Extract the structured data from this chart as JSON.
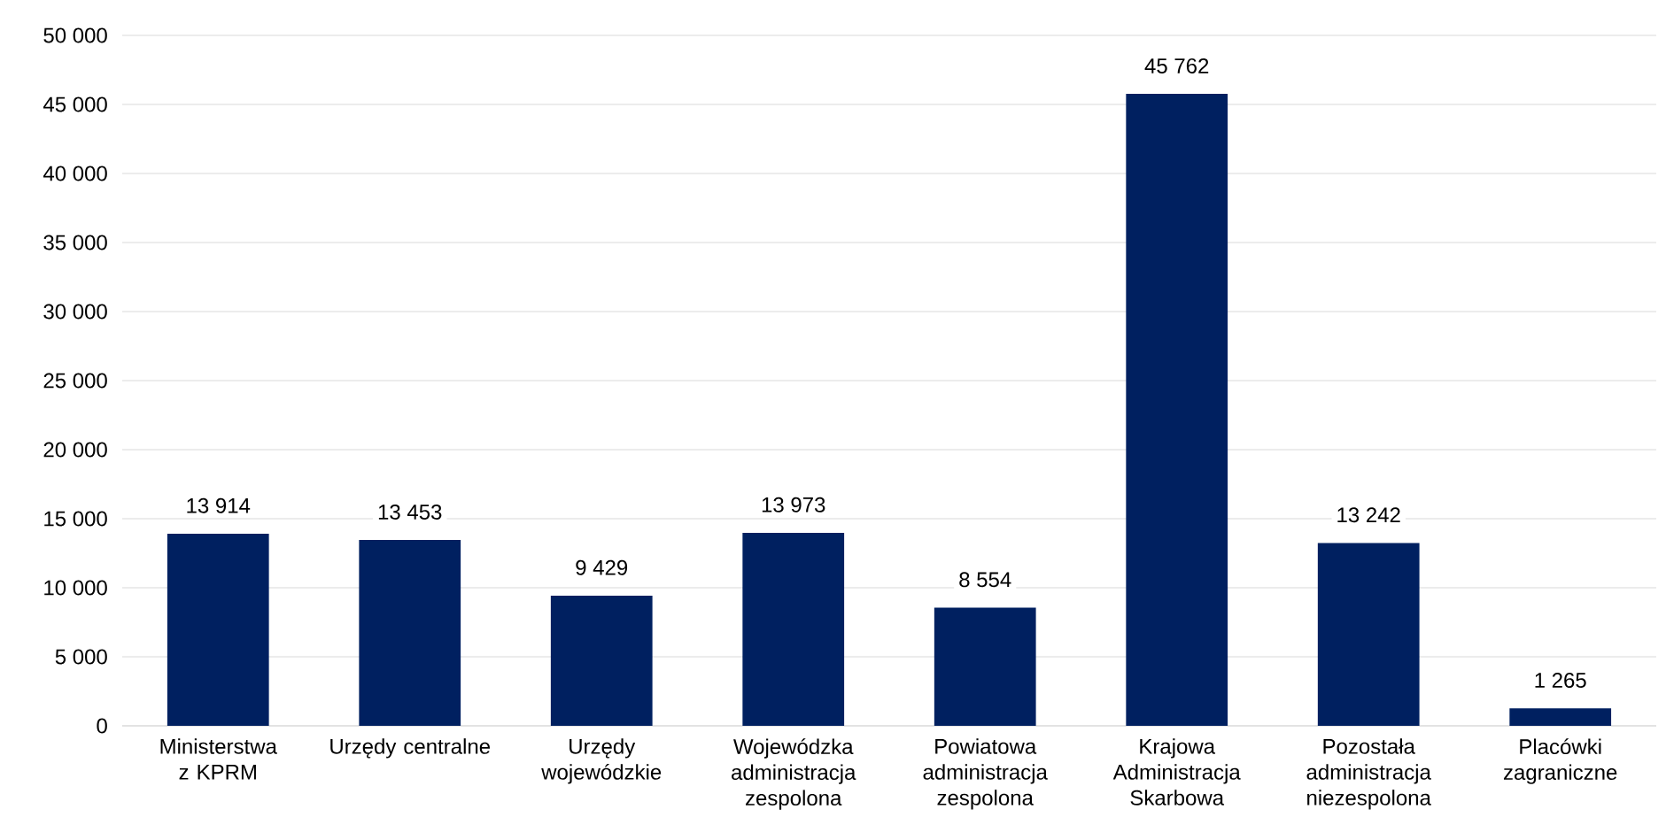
{
  "chart_data": {
    "type": "bar",
    "categories": [
      "Ministerstwa z KPRM",
      "Urzędy centralne",
      "Urzędy wojewódzkie",
      "Wojewódzka administracja zespolona",
      "Powiatowa administracja zespolona",
      "Krajowa Administracja Skarbowa",
      "Pozostała administracja niezespolona",
      "Placówki zagraniczne"
    ],
    "values": [
      13914,
      13453,
      9429,
      13973,
      8554,
      45762,
      13242,
      1265
    ],
    "value_labels": [
      "13 914",
      "13 453",
      "9 429",
      "13 973",
      "8 554",
      "45 762",
      "13 242",
      "1 265"
    ],
    "color": "#002060",
    "ylim": [
      0,
      50000
    ],
    "yticks": [
      {
        "value": 0,
        "label": "0"
      },
      {
        "value": 5000,
        "label": "5 000"
      },
      {
        "value": 10000,
        "label": "10 000"
      },
      {
        "value": 15000,
        "label": "15 000"
      },
      {
        "value": 20000,
        "label": "20 000"
      },
      {
        "value": 25000,
        "label": "25 000"
      },
      {
        "value": 30000,
        "label": "30 000"
      },
      {
        "value": 35000,
        "label": "35 000"
      },
      {
        "value": 40000,
        "label": "40 000"
      },
      {
        "value": 45000,
        "label": "45 000"
      },
      {
        "value": 50000,
        "label": "50 000"
      }
    ],
    "grid": "y"
  }
}
